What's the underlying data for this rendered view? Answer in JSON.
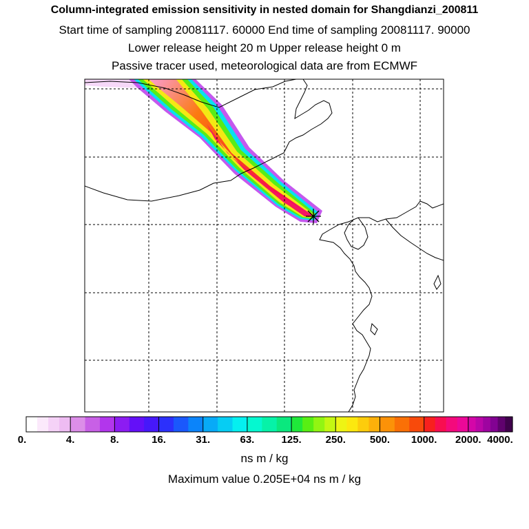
{
  "chart_data": {
    "type": "heatmap",
    "title": "Column-integrated emission sensitivity in nested domain for Shangdianzi_200811",
    "subtitle_lines": [
      "Start time of sampling 20081117. 60000     End time of sampling 20081117. 90000",
      "Lower release height   20 m          Upper release height    0 m",
      "Passive tracer used, meteorological data are from ECMWF"
    ],
    "colorbar": {
      "tick_labels": [
        "0.",
        "4.",
        "8.",
        "16.",
        "31.",
        "63.",
        "125.",
        "250.",
        "500.",
        "1000.",
        "2000.",
        "4000."
      ],
      "units": "ns m / kg",
      "colors": [
        "#ffffff",
        "#fbe9fb",
        "#f5d2f7",
        "#eebcf2",
        "#dc8ee8",
        "#c860e6",
        "#b236ec",
        "#8c1cf2",
        "#6410f8",
        "#4618fa",
        "#2c30fc",
        "#1a58fc",
        "#0b84fa",
        "#08aaf7",
        "#06cdf3",
        "#05f0f0",
        "#05f8d0",
        "#06f2a8",
        "#0ae87e",
        "#1fe83a",
        "#58ef14",
        "#92f512",
        "#c4f712",
        "#eef414",
        "#fce80f",
        "#fdcc0c",
        "#fdb00a",
        "#fc9208",
        "#fa7006",
        "#f84a0b",
        "#f8201e",
        "#f80e50",
        "#f40a7c",
        "#ec0898",
        "#d406a8",
        "#ba06a8",
        "#9e04a0",
        "#820292",
        "#60026e",
        "#40024c"
      ],
      "segment_counts": [
        4,
        3,
        3,
        3,
        3,
        3,
        4,
        4,
        3,
        4,
        6
      ]
    },
    "max_value_text": "Maximum value  0.205E+04 ns m / kg",
    "receptor": "Shangdianzi",
    "receptor_marker": "star-marker"
  }
}
